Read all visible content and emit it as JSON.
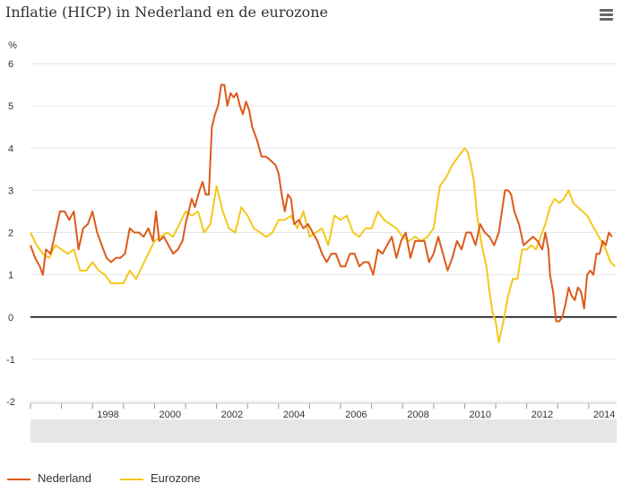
{
  "title": "Inflatie (HICP) in Nederland en de eurozone",
  "menu_icon": "hamburger-menu-icon",
  "colors": {
    "nederland": "#dd5a1b",
    "eurozone": "#f4c81b",
    "zero_line": "#000000",
    "grid": "#e6e6e6",
    "navigator": "#e6e6e6"
  },
  "chart_data": {
    "type": "line",
    "ylabel": "%",
    "ylim": [
      -2,
      6
    ],
    "yticks": [
      "-2",
      "-1",
      "0",
      "1",
      "2",
      "3",
      "4",
      "5",
      "6"
    ],
    "xlim": [
      1996.0,
      2014.9
    ],
    "xticks": [
      "1998",
      "2000",
      "2002",
      "2004",
      "2006",
      "2008",
      "2010",
      "2012",
      "2014"
    ],
    "legend_position": "bottom-left",
    "series": [
      {
        "name": "Nederland",
        "points": [
          [
            1996.0,
            1.7
          ],
          [
            1996.15,
            1.4
          ],
          [
            1996.3,
            1.2
          ],
          [
            1996.4,
            1.0
          ],
          [
            1996.5,
            1.6
          ],
          [
            1996.65,
            1.5
          ],
          [
            1996.8,
            2.0
          ],
          [
            1996.95,
            2.5
          ],
          [
            1997.1,
            2.5
          ],
          [
            1997.25,
            2.3
          ],
          [
            1997.4,
            2.5
          ],
          [
            1997.55,
            1.6
          ],
          [
            1997.7,
            2.1
          ],
          [
            1997.85,
            2.2
          ],
          [
            1998.0,
            2.5
          ],
          [
            1998.15,
            2.0
          ],
          [
            1998.3,
            1.7
          ],
          [
            1998.45,
            1.4
          ],
          [
            1998.6,
            1.3
          ],
          [
            1998.75,
            1.4
          ],
          [
            1998.9,
            1.4
          ],
          [
            1999.05,
            1.5
          ],
          [
            1999.2,
            2.1
          ],
          [
            1999.35,
            2.0
          ],
          [
            1999.5,
            2.0
          ],
          [
            1999.65,
            1.9
          ],
          [
            1999.8,
            2.1
          ],
          [
            1999.95,
            1.8
          ],
          [
            2000.05,
            2.5
          ],
          [
            2000.15,
            1.8
          ],
          [
            2000.3,
            1.9
          ],
          [
            2000.45,
            1.7
          ],
          [
            2000.6,
            1.5
          ],
          [
            2000.75,
            1.6
          ],
          [
            2000.9,
            1.8
          ],
          [
            2001.0,
            2.2
          ],
          [
            2001.1,
            2.5
          ],
          [
            2001.2,
            2.8
          ],
          [
            2001.3,
            2.6
          ],
          [
            2001.45,
            3.0
          ],
          [
            2001.55,
            3.2
          ],
          [
            2001.65,
            2.9
          ],
          [
            2001.75,
            2.9
          ],
          [
            2001.85,
            4.5
          ],
          [
            2001.95,
            4.8
          ],
          [
            2002.05,
            5.0
          ],
          [
            2002.15,
            5.5
          ],
          [
            2002.25,
            5.5
          ],
          [
            2002.35,
            5.0
          ],
          [
            2002.45,
            5.3
          ],
          [
            2002.55,
            5.2
          ],
          [
            2002.65,
            5.3
          ],
          [
            2002.75,
            5.0
          ],
          [
            2002.85,
            4.8
          ],
          [
            2002.95,
            5.1
          ],
          [
            2003.05,
            4.9
          ],
          [
            2003.15,
            4.5
          ],
          [
            2003.3,
            4.2
          ],
          [
            2003.45,
            3.8
          ],
          [
            2003.6,
            3.8
          ],
          [
            2003.75,
            3.7
          ],
          [
            2003.9,
            3.6
          ],
          [
            2004.0,
            3.4
          ],
          [
            2004.1,
            2.9
          ],
          [
            2004.2,
            2.5
          ],
          [
            2004.3,
            2.9
          ],
          [
            2004.4,
            2.8
          ],
          [
            2004.5,
            2.2
          ],
          [
            2004.65,
            2.3
          ],
          [
            2004.8,
            2.1
          ],
          [
            2004.95,
            2.2
          ],
          [
            2005.1,
            2.0
          ],
          [
            2005.25,
            1.8
          ],
          [
            2005.4,
            1.5
          ],
          [
            2005.55,
            1.3
          ],
          [
            2005.7,
            1.5
          ],
          [
            2005.85,
            1.5
          ],
          [
            2006.0,
            1.2
          ],
          [
            2006.15,
            1.2
          ],
          [
            2006.3,
            1.5
          ],
          [
            2006.45,
            1.5
          ],
          [
            2006.6,
            1.2
          ],
          [
            2006.75,
            1.3
          ],
          [
            2006.9,
            1.3
          ],
          [
            2007.05,
            1.0
          ],
          [
            2007.2,
            1.6
          ],
          [
            2007.35,
            1.5
          ],
          [
            2007.5,
            1.7
          ],
          [
            2007.65,
            1.9
          ],
          [
            2007.8,
            1.4
          ],
          [
            2007.95,
            1.8
          ],
          [
            2008.1,
            2.0
          ],
          [
            2008.25,
            1.4
          ],
          [
            2008.4,
            1.8
          ],
          [
            2008.55,
            1.8
          ],
          [
            2008.7,
            1.8
          ],
          [
            2008.85,
            1.3
          ],
          [
            2009.0,
            1.5
          ],
          [
            2009.15,
            1.9
          ],
          [
            2009.3,
            1.5
          ],
          [
            2009.45,
            1.1
          ],
          [
            2009.6,
            1.4
          ],
          [
            2009.75,
            1.8
          ],
          [
            2009.9,
            1.6
          ],
          [
            2010.05,
            2.0
          ],
          [
            2010.2,
            2.0
          ],
          [
            2010.35,
            1.7
          ],
          [
            2010.5,
            2.2
          ],
          [
            2010.65,
            2.0
          ],
          [
            2010.8,
            1.9
          ],
          [
            2010.95,
            1.7
          ],
          [
            2011.1,
            2.0
          ],
          [
            2011.2,
            2.5
          ],
          [
            2011.3,
            3.0
          ],
          [
            2011.4,
            3.0
          ],
          [
            2011.5,
            2.9
          ],
          [
            2011.6,
            2.5
          ],
          [
            2011.75,
            2.2
          ],
          [
            2011.9,
            1.7
          ],
          [
            2012.05,
            1.8
          ],
          [
            2012.2,
            1.9
          ],
          [
            2012.35,
            1.8
          ],
          [
            2012.5,
            1.6
          ],
          [
            2012.6,
            2.0
          ],
          [
            2012.7,
            1.6
          ],
          [
            2012.75,
            1.0
          ],
          [
            2012.85,
            0.6
          ],
          [
            2012.95,
            -0.1
          ],
          [
            2013.05,
            -0.1
          ],
          [
            2013.15,
            0.0
          ],
          [
            2013.25,
            0.3
          ],
          [
            2013.35,
            0.7
          ],
          [
            2013.45,
            0.5
          ],
          [
            2013.55,
            0.4
          ],
          [
            2013.65,
            0.7
          ],
          [
            2013.75,
            0.6
          ],
          [
            2013.85,
            0.2
          ],
          [
            2013.95,
            1.0
          ],
          [
            2014.05,
            1.1
          ],
          [
            2014.15,
            1.0
          ],
          [
            2014.25,
            1.5
          ],
          [
            2014.35,
            1.5
          ],
          [
            2014.45,
            1.8
          ],
          [
            2014.55,
            1.7
          ],
          [
            2014.65,
            2.0
          ],
          [
            2014.75,
            1.9
          ]
        ]
      },
      {
        "name": "Eurozone",
        "points": [
          [
            1996.0,
            2.0
          ],
          [
            1996.2,
            1.7
          ],
          [
            1996.4,
            1.5
          ],
          [
            1996.6,
            1.4
          ],
          [
            1996.8,
            1.7
          ],
          [
            1997.0,
            1.6
          ],
          [
            1997.2,
            1.5
          ],
          [
            1997.4,
            1.6
          ],
          [
            1997.6,
            1.1
          ],
          [
            1997.8,
            1.1
          ],
          [
            1998.0,
            1.3
          ],
          [
            1998.2,
            1.1
          ],
          [
            1998.4,
            1.0
          ],
          [
            1998.6,
            0.8
          ],
          [
            1998.8,
            0.8
          ],
          [
            1999.0,
            0.8
          ],
          [
            1999.2,
            1.1
          ],
          [
            1999.4,
            0.9
          ],
          [
            1999.6,
            1.2
          ],
          [
            1999.8,
            1.5
          ],
          [
            2000.0,
            1.8
          ],
          [
            2000.2,
            1.9
          ],
          [
            2000.4,
            2.0
          ],
          [
            2000.6,
            1.9
          ],
          [
            2000.8,
            2.2
          ],
          [
            2001.0,
            2.5
          ],
          [
            2001.2,
            2.4
          ],
          [
            2001.4,
            2.5
          ],
          [
            2001.6,
            2.0
          ],
          [
            2001.8,
            2.2
          ],
          [
            2002.0,
            3.1
          ],
          [
            2002.2,
            2.5
          ],
          [
            2002.4,
            2.1
          ],
          [
            2002.6,
            2.0
          ],
          [
            2002.8,
            2.6
          ],
          [
            2003.0,
            2.4
          ],
          [
            2003.2,
            2.1
          ],
          [
            2003.4,
            2.0
          ],
          [
            2003.6,
            1.9
          ],
          [
            2003.8,
            2.0
          ],
          [
            2004.0,
            2.3
          ],
          [
            2004.2,
            2.3
          ],
          [
            2004.4,
            2.4
          ],
          [
            2004.6,
            2.1
          ],
          [
            2004.8,
            2.5
          ],
          [
            2005.0,
            1.9
          ],
          [
            2005.2,
            2.0
          ],
          [
            2005.4,
            2.1
          ],
          [
            2005.6,
            1.7
          ],
          [
            2005.8,
            2.4
          ],
          [
            2006.0,
            2.3
          ],
          [
            2006.2,
            2.4
          ],
          [
            2006.4,
            2.0
          ],
          [
            2006.6,
            1.9
          ],
          [
            2006.8,
            2.1
          ],
          [
            2007.0,
            2.1
          ],
          [
            2007.2,
            2.5
          ],
          [
            2007.4,
            2.3
          ],
          [
            2007.6,
            2.2
          ],
          [
            2007.8,
            2.1
          ],
          [
            2008.0,
            1.9
          ],
          [
            2008.2,
            1.8
          ],
          [
            2008.4,
            1.9
          ],
          [
            2008.6,
            1.8
          ],
          [
            2008.8,
            1.9
          ],
          [
            2009.0,
            2.1
          ],
          [
            2009.2,
            3.1
          ],
          [
            2009.4,
            3.3
          ],
          [
            2009.6,
            3.6
          ],
          [
            2009.8,
            3.8
          ],
          [
            2010.0,
            4.0
          ],
          [
            2010.1,
            3.9
          ],
          [
            2010.2,
            3.6
          ],
          [
            2010.3,
            3.2
          ],
          [
            2010.4,
            2.4
          ],
          [
            2010.55,
            1.7
          ],
          [
            2010.7,
            1.2
          ],
          [
            2010.8,
            0.6
          ],
          [
            2010.9,
            0.1
          ],
          [
            2011.0,
            -0.1
          ],
          [
            2011.1,
            -0.6
          ],
          [
            2011.25,
            -0.1
          ],
          [
            2011.4,
            0.5
          ],
          [
            2011.55,
            0.9
          ],
          [
            2011.7,
            0.9
          ],
          [
            2011.85,
            1.6
          ],
          [
            2012.0,
            1.6
          ],
          [
            2012.15,
            1.7
          ],
          [
            2012.3,
            1.6
          ],
          [
            2012.45,
            1.9
          ],
          [
            2012.6,
            2.2
          ],
          [
            2012.75,
            2.6
          ],
          [
            2012.9,
            2.8
          ],
          [
            2013.05,
            2.7
          ],
          [
            2013.2,
            2.8
          ],
          [
            2013.35,
            3.0
          ],
          [
            2013.5,
            2.7
          ],
          [
            2013.65,
            2.6
          ],
          [
            2013.8,
            2.5
          ],
          [
            2013.95,
            2.4
          ],
          [
            2014.1,
            2.2
          ],
          [
            2014.25,
            2.0
          ],
          [
            2014.4,
            1.8
          ],
          [
            2014.55,
            1.6
          ],
          [
            2014.7,
            1.3
          ],
          [
            2014.85,
            1.2
          ]
        ]
      }
    ]
  },
  "legend": [
    {
      "label": "Nederland",
      "color_key": "nederland"
    },
    {
      "label": "Eurozone",
      "color_key": "eurozone"
    }
  ]
}
